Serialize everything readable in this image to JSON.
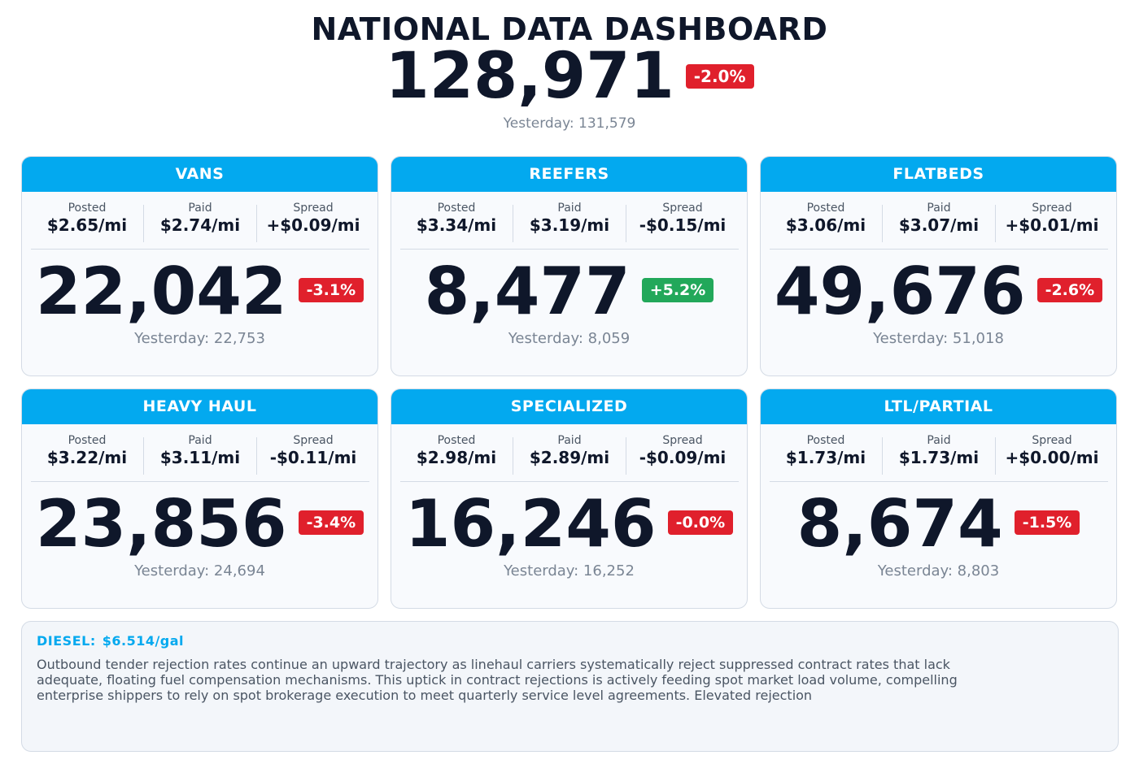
{
  "header": {
    "title": "NATIONAL DATA DASHBOARD",
    "total": "128,971",
    "change": "-2.0%",
    "yesterday": "Yesterday: 131,579"
  },
  "metric_labels": {
    "posted": "Posted",
    "paid": "Paid",
    "spread": "Spread"
  },
  "cards": [
    {
      "title": "VANS",
      "posted": "$2.65/mi",
      "paid": "$2.74/mi",
      "spread": "+$0.09/mi",
      "count": "22,042",
      "change": "-3.1%",
      "trend": "neg",
      "yesterday": "Yesterday: 22,753"
    },
    {
      "title": "REEFERS",
      "posted": "$3.34/mi",
      "paid": "$3.19/mi",
      "spread": "-$0.15/mi",
      "count": "8,477",
      "change": "+5.2%",
      "trend": "pos",
      "yesterday": "Yesterday: 8,059"
    },
    {
      "title": "FLATBEDS",
      "posted": "$3.06/mi",
      "paid": "$3.07/mi",
      "spread": "+$0.01/mi",
      "count": "49,676",
      "change": "-2.6%",
      "trend": "neg",
      "yesterday": "Yesterday: 51,018"
    },
    {
      "title": "HEAVY HAUL",
      "posted": "$3.22/mi",
      "paid": "$3.11/mi",
      "spread": "-$0.11/mi",
      "count": "23,856",
      "change": "-3.4%",
      "trend": "neg",
      "yesterday": "Yesterday: 24,694"
    },
    {
      "title": "SPECIALIZED",
      "posted": "$2.98/mi",
      "paid": "$2.89/mi",
      "spread": "-$0.09/mi",
      "count": "16,246",
      "change": "-0.0%",
      "trend": "neg",
      "yesterday": "Yesterday: 16,252"
    },
    {
      "title": "LTL/PARTIAL",
      "posted": "$1.73/mi",
      "paid": "$1.73/mi",
      "spread": "+$0.00/mi",
      "count": "8,674",
      "change": "-1.5%",
      "trend": "neg",
      "yesterday": "Yesterday: 8,803"
    }
  ],
  "note": {
    "diesel_label": "DIESEL:",
    "diesel_value": "$6.514/gal",
    "text": "Outbound tender rejection rates continue an upward trajectory as linehaul carriers systematically reject suppressed contract rates that lack adequate, floating fuel compensation mechanisms. This uptick in contract rejections is actively feeding spot market load volume, compelling enterprise shippers to rely on spot brokerage execution to meet quarterly service level agreements. Elevated rejection"
  },
  "colors": {
    "accent": "#03a9ef",
    "negative": "#e0202c",
    "positive": "#22a85a",
    "text": "#0f172a",
    "muted": "#7a8594"
  }
}
